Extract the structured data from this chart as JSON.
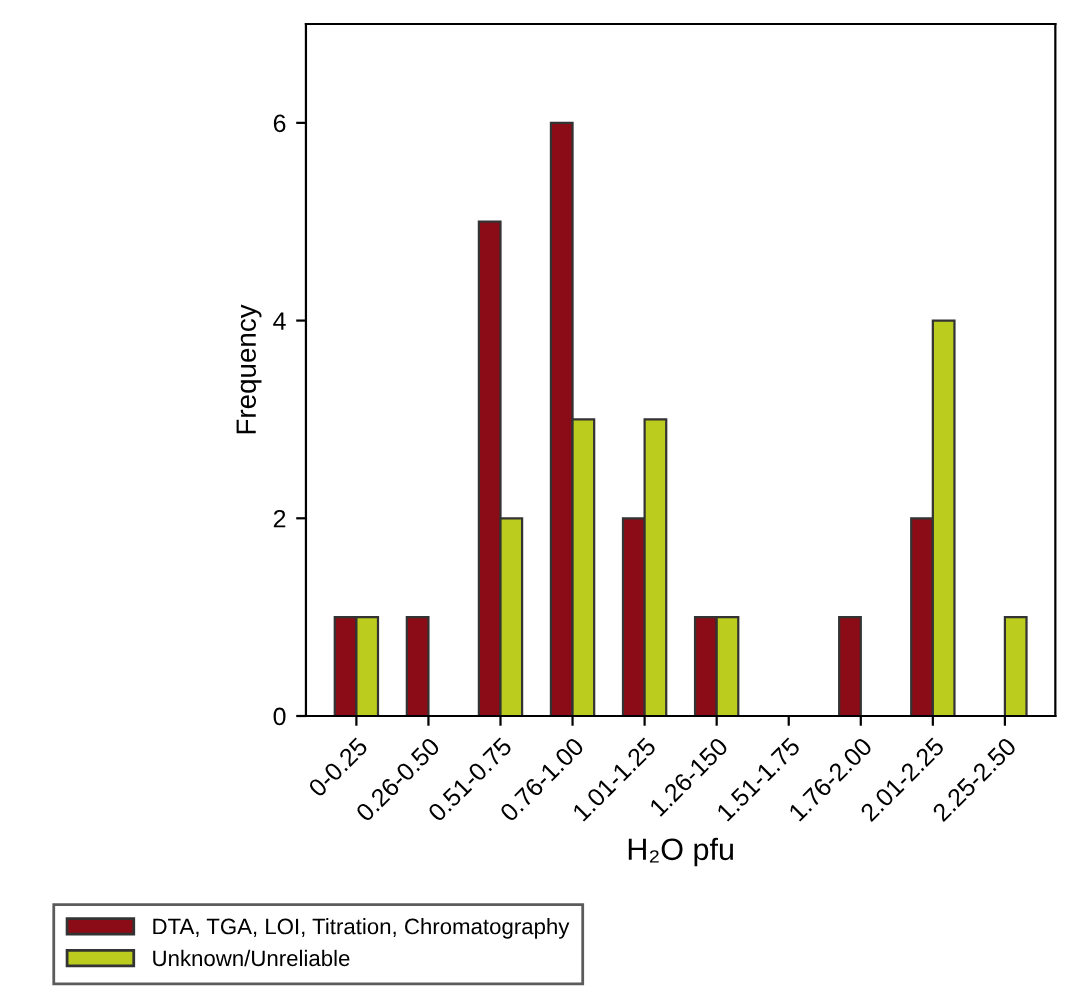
{
  "chart_data": {
    "type": "bar",
    "xlabel": "H₂O pfu",
    "ylabel": "Frequency",
    "categories": [
      "0-0.25",
      "0.26-0.50",
      "0.51-0.75",
      "0.76-1.00",
      "1.01-1.25",
      "1.26-150",
      "1.51-1.75",
      "1.76-2.00",
      "2.01-2.25",
      "2.25-2.50"
    ],
    "series": [
      {
        "name": "DTA, TGA, LOI, Titration, Chromatography",
        "color": "#8b0c16",
        "values": [
          1,
          1,
          5,
          6,
          2,
          1,
          null,
          1,
          2,
          null
        ]
      },
      {
        "name": "Unknown/Unreliable",
        "color": "#bccc1e",
        "values": [
          1,
          null,
          2,
          3,
          3,
          1,
          null,
          null,
          4,
          1
        ]
      }
    ],
    "ylim": [
      0,
      7
    ],
    "yticks": [
      0,
      2,
      4,
      6
    ],
    "grid": false,
    "legend": "bottom left"
  }
}
